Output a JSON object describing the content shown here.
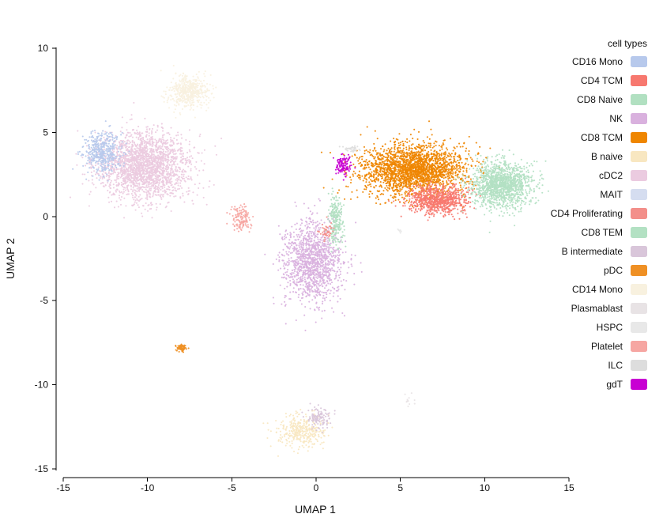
{
  "chart_data": {
    "type": "scatter",
    "title": "",
    "xlabel": "UMAP 1",
    "ylabel": "UMAP 2",
    "xlim": [
      -15,
      15
    ],
    "ylim": [
      -15,
      10
    ],
    "xticks": [
      -15,
      -10,
      -5,
      0,
      5,
      10,
      15
    ],
    "yticks": [
      10,
      5,
      0,
      -5,
      -10,
      -15
    ],
    "grid": false,
    "legend": {
      "title": "cell types",
      "position": "right",
      "entries": [
        {
          "name": "CD16 Mono",
          "color": "#b7c9ec"
        },
        {
          "name": "CD4 TCM",
          "color": "#f7786f"
        },
        {
          "name": "CD8 Naive",
          "color": "#b1e0c1"
        },
        {
          "name": "NK",
          "color": "#d9b1de"
        },
        {
          "name": "CD8 TCM",
          "color": "#ef8600"
        },
        {
          "name": "B naive",
          "color": "#f8e7c1"
        },
        {
          "name": "cDC2",
          "color": "#ebcbe0"
        },
        {
          "name": "MAIT",
          "color": "#d5ddf0"
        },
        {
          "name": "CD4 Proliferating",
          "color": "#f38f8a"
        },
        {
          "name": "CD8 TEM",
          "color": "#b3e1c3"
        },
        {
          "name": "B intermediate",
          "color": "#d9c6da"
        },
        {
          "name": "pDC",
          "color": "#ef9024"
        },
        {
          "name": "CD14 Mono",
          "color": "#f8f1df"
        },
        {
          "name": "Plasmablast",
          "color": "#e8e3e5"
        },
        {
          "name": "HSPC",
          "color": "#e8e8e8"
        },
        {
          "name": "Platelet",
          "color": "#f6a6a2"
        },
        {
          "name": "ILC",
          "color": "#dddddd"
        },
        {
          "name": "gdT",
          "color": "#c800d3"
        }
      ]
    },
    "clusters": [
      {
        "label": "cDC2",
        "center": [
          -10.2,
          3.0
        ],
        "spread": [
          2.8,
          2.1
        ],
        "count": 2200
      },
      {
        "label": "CD14 Mono",
        "center": [
          -7.6,
          7.4
        ],
        "spread": [
          1.2,
          1.0
        ],
        "count": 500
      },
      {
        "label": "CD16 Mono",
        "center": [
          -12.7,
          3.8
        ],
        "spread": [
          1.2,
          1.3
        ],
        "count": 450
      },
      {
        "label": "B naive",
        "center": [
          -0.8,
          -12.7
        ],
        "spread": [
          1.5,
          1.0
        ],
        "count": 350
      },
      {
        "label": "B intermediate",
        "center": [
          0.2,
          -12.0
        ],
        "spread": [
          0.8,
          0.6
        ],
        "count": 120
      },
      {
        "label": "NK",
        "center": [
          -0.2,
          -2.7
        ],
        "spread": [
          1.8,
          2.4
        ],
        "count": 1300
      },
      {
        "label": "CD8 TCM",
        "center": [
          5.7,
          2.8
        ],
        "spread": [
          3.3,
          1.6
        ],
        "count": 2300
      },
      {
        "label": "CD4 TCM",
        "center": [
          7.2,
          1.0
        ],
        "spread": [
          1.8,
          0.9
        ],
        "count": 800
      },
      {
        "label": "CD8 TEM",
        "center": [
          11.0,
          1.9
        ],
        "spread": [
          1.9,
          1.4
        ],
        "count": 1400
      },
      {
        "label": "CD8 Naive",
        "center": [
          1.2,
          -0.2
        ],
        "spread": [
          0.5,
          1.6
        ],
        "count": 220
      },
      {
        "label": "Platelet",
        "center": [
          -4.4,
          -0.1
        ],
        "spread": [
          0.6,
          0.8
        ],
        "count": 130
      },
      {
        "label": "pDC",
        "center": [
          -8.0,
          -7.8
        ],
        "spread": [
          0.3,
          0.2
        ],
        "count": 80
      },
      {
        "label": "gdT",
        "center": [
          1.6,
          3.1
        ],
        "spread": [
          0.5,
          0.6
        ],
        "count": 120
      },
      {
        "label": "ILC",
        "center": [
          2.1,
          4.0
        ],
        "spread": [
          0.5,
          0.2
        ],
        "count": 35
      },
      {
        "label": "CD4 Proliferating",
        "center": [
          0.6,
          -0.9
        ],
        "spread": [
          0.4,
          0.5
        ],
        "count": 45
      },
      {
        "label": "Plasmablast",
        "center": [
          5.4,
          -11.0
        ],
        "spread": [
          0.4,
          0.4
        ],
        "count": 12
      },
      {
        "label": "HSPC",
        "center": [
          5.0,
          -0.8
        ],
        "spread": [
          0.2,
          0.1
        ],
        "count": 8
      }
    ]
  }
}
